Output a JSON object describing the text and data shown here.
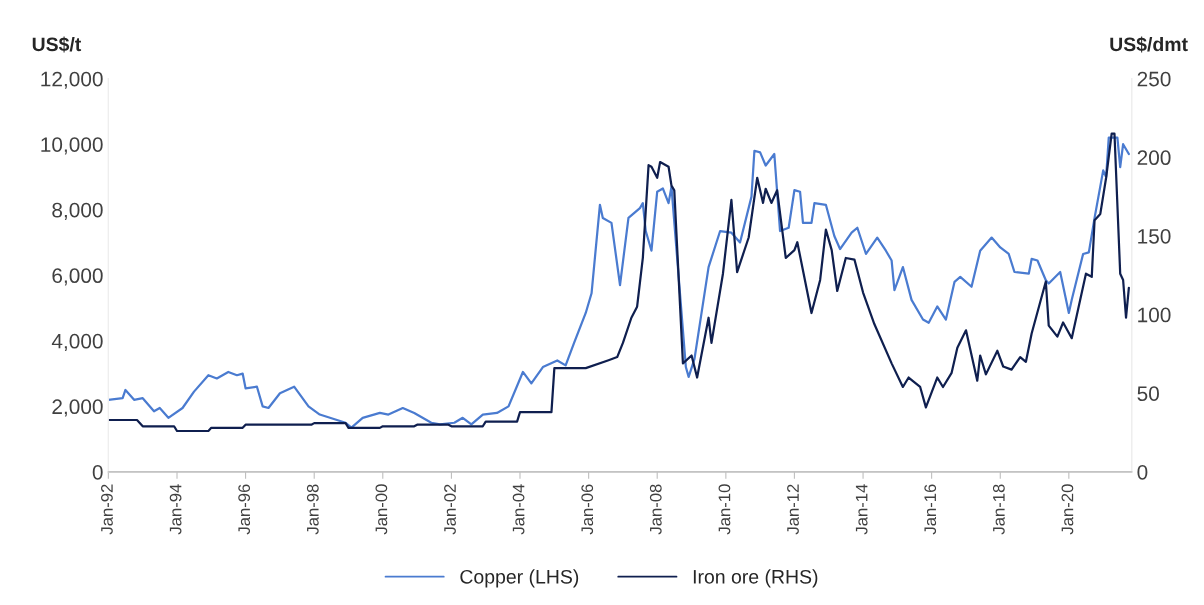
{
  "chart_data": {
    "type": "line",
    "ylabel": "US$/t",
    "y2label": "US$/dmt",
    "xlim": [
      "1992-01",
      "2021-11"
    ],
    "xticks": [
      {
        "value": "1992-01",
        "label": "Jan-92"
      },
      {
        "value": "1994-01",
        "label": "Jan-94"
      },
      {
        "value": "1996-01",
        "label": "Jan-96"
      },
      {
        "value": "1998-01",
        "label": "Jan-98"
      },
      {
        "value": "2000-01",
        "label": "Jan-00"
      },
      {
        "value": "2002-01",
        "label": "Jan-02"
      },
      {
        "value": "2004-01",
        "label": "Jan-04"
      },
      {
        "value": "2006-01",
        "label": "Jan-06"
      },
      {
        "value": "2008-01",
        "label": "Jan-08"
      },
      {
        "value": "2010-01",
        "label": "Jan-10"
      },
      {
        "value": "2012-01",
        "label": "Jan-12"
      },
      {
        "value": "2014-01",
        "label": "Jan-14"
      },
      {
        "value": "2016-01",
        "label": "Jan-16"
      },
      {
        "value": "2018-01",
        "label": "Jan-18"
      },
      {
        "value": "2020-01",
        "label": "Jan-20"
      }
    ],
    "ylim": [
      0,
      12000
    ],
    "yticks": [
      0,
      {
        "value": 2000,
        "label": "2,000"
      },
      {
        "value": 4000,
        "label": "4,000"
      },
      {
        "value": 6000,
        "label": "6,000"
      },
      {
        "value": 8000,
        "label": "8,000"
      },
      {
        "value": 10000,
        "label": "10,000"
      },
      {
        "value": 12000,
        "label": "12,000"
      }
    ],
    "y2lim": [
      0,
      250
    ],
    "y2ticks": [
      0,
      50,
      100,
      150,
      200,
      250
    ],
    "grid": false,
    "legend": "bottom",
    "marker": "none",
    "line_style": "solid",
    "series": [
      {
        "name": "Copper (LHS)",
        "color": "#4a7bd0",
        "x": [
          "1992-01",
          "1992-06",
          "1992-07",
          "1992-10",
          "1993-01",
          "1993-05",
          "1993-07",
          "1993-10",
          "1994-03",
          "1994-07",
          "1994-12",
          "1995-03",
          "1995-07",
          "1995-10",
          "1995-12",
          "1996-01",
          "1996-05",
          "1996-07",
          "1996-09",
          "1997-01",
          "1997-06",
          "1997-11",
          "1998-03",
          "1998-12",
          "1999-02",
          "1999-06",
          "1999-12",
          "2000-03",
          "2000-08",
          "2000-12",
          "2001-06",
          "2001-09",
          "2002-02",
          "2002-05",
          "2002-08",
          "2002-12",
          "2003-05",
          "2003-09",
          "2004-02",
          "2004-05",
          "2004-09",
          "2005-02",
          "2005-05",
          "2005-08",
          "2005-12",
          "2006-02",
          "2006-05",
          "2006-06",
          "2006-09",
          "2006-12",
          "2007-03",
          "2007-07",
          "2007-08",
          "2007-09",
          "2007-11",
          "2008-01",
          "2008-03",
          "2008-05",
          "2008-06",
          "2008-11",
          "2008-12",
          "2009-02",
          "2009-07",
          "2009-11",
          "2010-03",
          "2010-06",
          "2010-10",
          "2010-11",
          "2011-01",
          "2011-03",
          "2011-06",
          "2011-08",
          "2011-11",
          "2012-01",
          "2012-03",
          "2012-04",
          "2012-07",
          "2012-08",
          "2012-12",
          "2013-03",
          "2013-05",
          "2013-09",
          "2013-11",
          "2014-02",
          "2014-06",
          "2014-09",
          "2014-11",
          "2014-12",
          "2015-03",
          "2015-06",
          "2015-10",
          "2015-12",
          "2016-03",
          "2016-06",
          "2016-09",
          "2016-11",
          "2017-03",
          "2017-06",
          "2017-10",
          "2018-01",
          "2018-04",
          "2018-06",
          "2018-11",
          "2018-12",
          "2019-02",
          "2019-05",
          "2019-06",
          "2019-10",
          "2020-01",
          "2020-02",
          "2020-06",
          "2020-08",
          "2020-10",
          "2021-01",
          "2021-02",
          "2021-03",
          "2021-06",
          "2021-07",
          "2021-08",
          "2021-10"
        ],
        "values": [
          2200,
          2250,
          2500,
          2200,
          2250,
          1850,
          1950,
          1650,
          1950,
          2450,
          2950,
          2850,
          3050,
          2950,
          3000,
          2550,
          2600,
          2000,
          1950,
          2400,
          2600,
          2000,
          1750,
          1500,
          1350,
          1650,
          1800,
          1750,
          1950,
          1800,
          1500,
          1450,
          1500,
          1650,
          1450,
          1750,
          1800,
          2000,
          3050,
          2700,
          3200,
          3400,
          3250,
          3950,
          4850,
          5450,
          8150,
          7750,
          7600,
          5700,
          7750,
          8050,
          8200,
          7350,
          6750,
          8550,
          8650,
          8200,
          8700,
          3200,
          2900,
          3450,
          6250,
          7350,
          7300,
          7000,
          8400,
          9800,
          9750,
          9350,
          9700,
          7350,
          7450,
          8600,
          8550,
          7600,
          7600,
          8200,
          8150,
          7200,
          6800,
          7300,
          7450,
          6650,
          7150,
          6750,
          6450,
          5550,
          6250,
          5250,
          4650,
          4550,
          5050,
          4650,
          5800,
          5950,
          5650,
          6750,
          7150,
          6850,
          6650,
          6100,
          6050,
          6500,
          6450,
          5850,
          5750,
          6100,
          4850,
          5250,
          6650,
          6700,
          7750,
          9200,
          9000,
          10200,
          10200,
          9300,
          10000,
          9700
        ]
      },
      {
        "name": "Iron ore (RHS)",
        "color": "#0f1f4f",
        "axis": "y2",
        "x": [
          "1992-01",
          "1992-11",
          "1993-01",
          "1993-12",
          "1994-01",
          "1994-12",
          "1995-01",
          "1995-12",
          "1996-01",
          "1997-12",
          "1998-01",
          "1998-12",
          "1999-01",
          "1999-12",
          "2000-01",
          "2000-12",
          "2001-01",
          "2001-12",
          "2002-01",
          "2002-12",
          "2003-01",
          "2003-12",
          "2004-01",
          "2004-12",
          "2005-01",
          "2005-12",
          "2006-08",
          "2006-11",
          "2007-01",
          "2007-04",
          "2007-06",
          "2007-08",
          "2007-10",
          "2007-11",
          "2008-01",
          "2008-02",
          "2008-05",
          "2008-06",
          "2008-07",
          "2008-10",
          "2009-01",
          "2009-03",
          "2009-07",
          "2009-08",
          "2009-12",
          "2010-03",
          "2010-05",
          "2010-09",
          "2010-12",
          "2011-02",
          "2011-03",
          "2011-05",
          "2011-07",
          "2011-10",
          "2012-01",
          "2012-02",
          "2012-07",
          "2012-10",
          "2012-12",
          "2013-02",
          "2013-04",
          "2013-07",
          "2013-10",
          "2014-01",
          "2014-05",
          "2014-11",
          "2015-03",
          "2015-05",
          "2015-09",
          "2015-11",
          "2016-03",
          "2016-05",
          "2016-08",
          "2016-10",
          "2017-01",
          "2017-05",
          "2017-06",
          "2017-08",
          "2017-12",
          "2018-02",
          "2018-05",
          "2018-08",
          "2018-10",
          "2018-12",
          "2019-05",
          "2019-06",
          "2019-09",
          "2019-11",
          "2020-02",
          "2020-07",
          "2020-09",
          "2020-10",
          "2020-12",
          "2021-02",
          "2021-04",
          "2021-05",
          "2021-07",
          "2021-08",
          "2021-09",
          "2021-10"
        ],
        "values": [
          33,
          33,
          29,
          29,
          26,
          26,
          28,
          28,
          30,
          30,
          31,
          31,
          28,
          28,
          29,
          29,
          30,
          30,
          29,
          29,
          32,
          32,
          38,
          38,
          66,
          66,
          71,
          73,
          82,
          98,
          105,
          136,
          195,
          194,
          187,
          197,
          194,
          182,
          179,
          69,
          74,
          60,
          98,
          82,
          126,
          173,
          127,
          149,
          187,
          171,
          180,
          171,
          179,
          136,
          141,
          146,
          101,
          122,
          154,
          141,
          115,
          136,
          135,
          114,
          94,
          69,
          54,
          60,
          54,
          41,
          60,
          54,
          63,
          79,
          90,
          58,
          74,
          62,
          77,
          67,
          65,
          73,
          70,
          88,
          121,
          93,
          86,
          95,
          85,
          126,
          124,
          160,
          164,
          187,
          215,
          215,
          126,
          122,
          98,
          117
        ]
      }
    ]
  }
}
